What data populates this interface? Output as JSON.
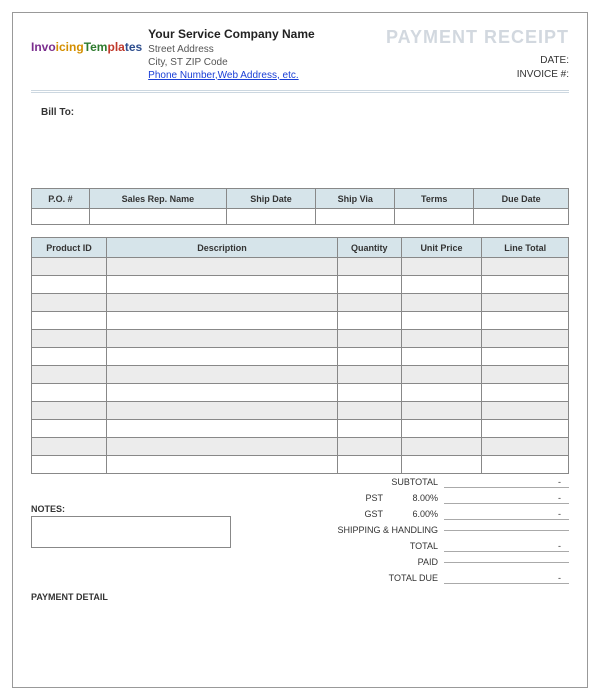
{
  "header": {
    "logo_text": "InvoicingTemplates",
    "company_name": "Your Service Company Name",
    "street": "Street Address",
    "city_line": "City, ST  ZIP Code",
    "contact_link": "Phone Number,Web Address, etc.",
    "title": "PAYMENT RECEIPT",
    "date_label": "DATE:",
    "invoice_label": "INVOICE #:"
  },
  "billto_label": "Bill To:",
  "order_table": {
    "columns": [
      "P.O. #",
      "Sales Rep. Name",
      "Ship Date",
      "Ship Via",
      "Terms",
      "Due Date"
    ]
  },
  "items_table": {
    "columns": [
      "Product ID",
      "Description",
      "Quantity",
      "Unit Price",
      "Line Total"
    ],
    "row_count": 12
  },
  "totals": {
    "subtotal_label": "SUBTOTAL",
    "pst_label": "PST",
    "pst_pct": "8.00%",
    "gst_label": "GST",
    "gst_pct": "6.00%",
    "shipping_label": "SHIPPING & HANDLING",
    "total_label": "TOTAL",
    "paid_label": "PAID",
    "due_label": "TOTAL DUE",
    "dash": "-"
  },
  "notes_label": "NOTES:",
  "payment_detail_label": "PAYMENT DETAIL",
  "colors": {
    "header_bg": "#d6e4ea",
    "stripe": "#ececec",
    "border": "#888888",
    "title": "#d2d8df",
    "link": "#1a3fd6"
  }
}
